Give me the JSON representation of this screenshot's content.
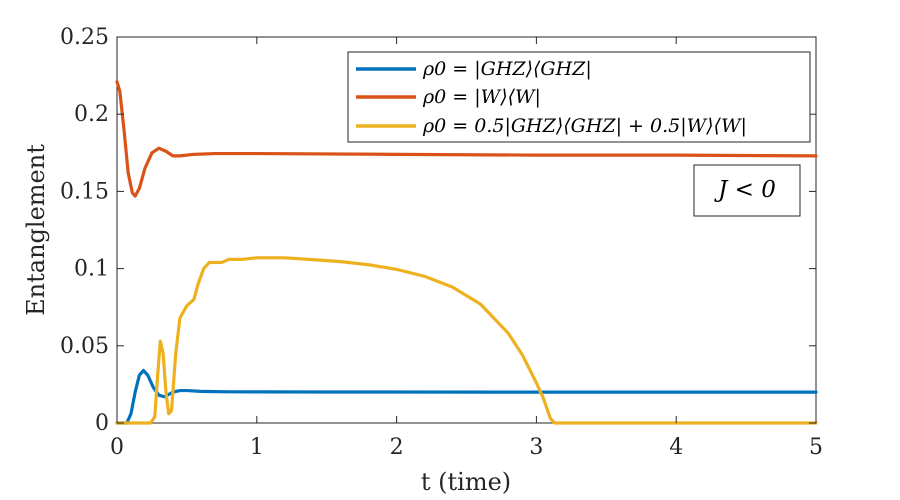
{
  "chart_data": {
    "type": "line",
    "xlabel": "t (time)",
    "ylabel": "Entanglement",
    "xlim": [
      0,
      5
    ],
    "ylim": [
      0,
      0.25
    ],
    "xticks": [
      0,
      1,
      2,
      3,
      4,
      5
    ],
    "yticks": [
      0,
      0.05,
      0.1,
      0.15,
      0.2,
      0.25
    ],
    "xtick_labels": [
      "0",
      "1",
      "2",
      "3",
      "4",
      "5"
    ],
    "ytick_labels": [
      "0",
      "0.05",
      "0.1",
      "0.15",
      "0.2",
      "0.25"
    ],
    "grid": false,
    "legend_position": "top-right",
    "annotation": "J < 0",
    "series": [
      {
        "name": "ρ0 = |GHZ⟩⟨GHZ|",
        "color": "#0072BD",
        "points": [
          [
            0,
            0
          ],
          [
            0.07,
            0
          ],
          [
            0.1,
            0.006
          ],
          [
            0.13,
            0.02
          ],
          [
            0.16,
            0.031
          ],
          [
            0.19,
            0.034
          ],
          [
            0.22,
            0.031
          ],
          [
            0.26,
            0.023
          ],
          [
            0.3,
            0.018
          ],
          [
            0.34,
            0.017
          ],
          [
            0.4,
            0.02
          ],
          [
            0.45,
            0.021
          ],
          [
            0.5,
            0.021
          ],
          [
            0.6,
            0.0205
          ],
          [
            0.8,
            0.0202
          ],
          [
            1.5,
            0.0201
          ],
          [
            3,
            0.02
          ],
          [
            5,
            0.02
          ]
        ]
      },
      {
        "name": "ρ0 = |W⟩⟨W|",
        "color": "#D95319",
        "points": [
          [
            0,
            0.221
          ],
          [
            0.02,
            0.215
          ],
          [
            0.05,
            0.19
          ],
          [
            0.08,
            0.162
          ],
          [
            0.11,
            0.149
          ],
          [
            0.13,
            0.147
          ],
          [
            0.16,
            0.152
          ],
          [
            0.2,
            0.165
          ],
          [
            0.25,
            0.175
          ],
          [
            0.3,
            0.178
          ],
          [
            0.35,
            0.176
          ],
          [
            0.4,
            0.173
          ],
          [
            0.45,
            0.173
          ],
          [
            0.55,
            0.174
          ],
          [
            0.7,
            0.1745
          ],
          [
            1,
            0.1745
          ],
          [
            2,
            0.174
          ],
          [
            3,
            0.1735
          ],
          [
            4,
            0.1735
          ],
          [
            5,
            0.173
          ]
        ]
      },
      {
        "name": "ρ0 = 0.5|GHZ⟩⟨GHZ| + 0.5|W⟩⟨W|",
        "color": "#EDB120",
        "points": [
          [
            0,
            0
          ],
          [
            0.24,
            0
          ],
          [
            0.27,
            0.004
          ],
          [
            0.29,
            0.03
          ],
          [
            0.31,
            0.053
          ],
          [
            0.33,
            0.045
          ],
          [
            0.35,
            0.02
          ],
          [
            0.37,
            0.006
          ],
          [
            0.39,
            0.008
          ],
          [
            0.42,
            0.045
          ],
          [
            0.45,
            0.068
          ],
          [
            0.5,
            0.076
          ],
          [
            0.55,
            0.08
          ],
          [
            0.58,
            0.09
          ],
          [
            0.62,
            0.1
          ],
          [
            0.66,
            0.104
          ],
          [
            0.7,
            0.104
          ],
          [
            0.75,
            0.104
          ],
          [
            0.8,
            0.106
          ],
          [
            0.9,
            0.106
          ],
          [
            1,
            0.107
          ],
          [
            1.2,
            0.107
          ],
          [
            1.4,
            0.1058
          ],
          [
            1.6,
            0.1045
          ],
          [
            1.8,
            0.1025
          ],
          [
            2,
            0.0995
          ],
          [
            2.2,
            0.095
          ],
          [
            2.4,
            0.088
          ],
          [
            2.6,
            0.077
          ],
          [
            2.8,
            0.058
          ],
          [
            2.9,
            0.044
          ],
          [
            3,
            0.026
          ],
          [
            3.05,
            0.016
          ],
          [
            3.1,
            0.003
          ],
          [
            3.13,
            0
          ],
          [
            3.5,
            0
          ],
          [
            4,
            0
          ],
          [
            5,
            0
          ]
        ]
      }
    ]
  }
}
